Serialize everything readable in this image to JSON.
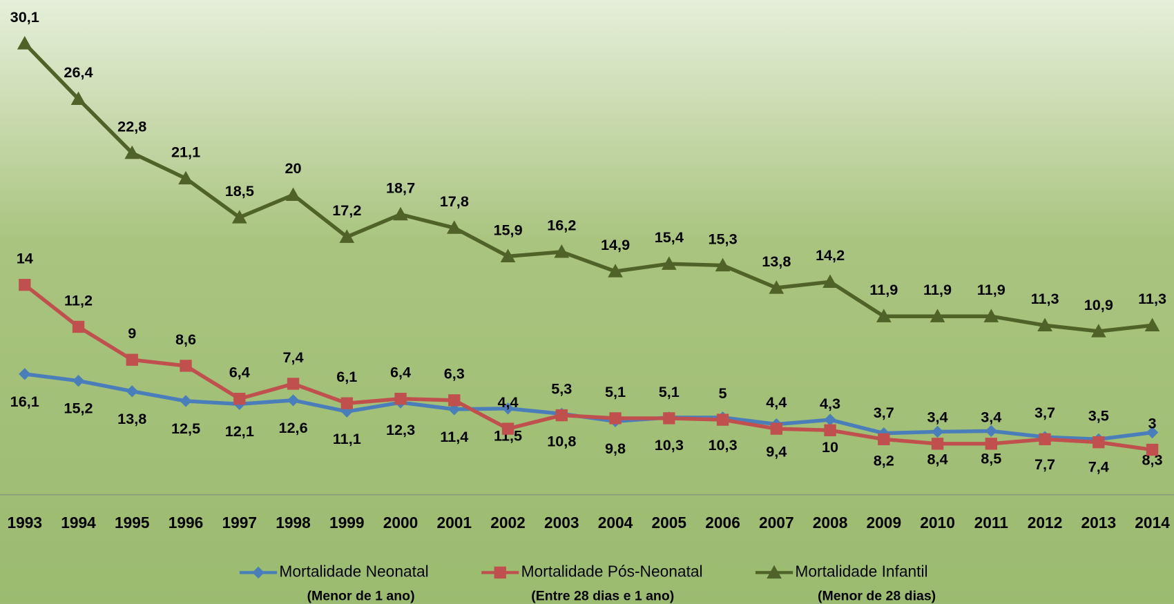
{
  "chart_data": {
    "type": "line",
    "categories": [
      "1993",
      "1994",
      "1995",
      "1996",
      "1997",
      "1998",
      "1999",
      "2000",
      "2001",
      "2002",
      "2003",
      "2004",
      "2005",
      "2006",
      "2007",
      "2008",
      "2009",
      "2010",
      "2011",
      "2012",
      "2013",
      "2014"
    ],
    "ylim": [
      0,
      33
    ],
    "y2lim": [
      0,
      66
    ],
    "grid": false,
    "series": [
      {
        "name": "Mortalidade Neonatal",
        "subtitle": "(Menor de 1 ano)",
        "color": "#4a7ebb",
        "marker": "diamond",
        "axis": "y2",
        "label_position": "below",
        "values": [
          16.1,
          15.2,
          13.8,
          12.5,
          12.1,
          12.6,
          11.1,
          12.3,
          11.4,
          11.5,
          10.8,
          9.8,
          10.3,
          10.3,
          9.4,
          10,
          8.2,
          8.4,
          8.5,
          7.7,
          7.4,
          8.3
        ],
        "value_labels": [
          "16,1",
          "15,2",
          "13,8",
          "12,5",
          "12,1",
          "12,6",
          "11,1",
          "12,3",
          "11,4",
          "11,5",
          "10,8",
          "9,8",
          "10,3",
          "10,3",
          "9,4",
          "10",
          "8,2",
          "8,4",
          "8,5",
          "7,7",
          "7,4",
          "8,3"
        ]
      },
      {
        "name": "Mortalidade Pós-Neonatal",
        "subtitle": "(Entre 28 dias e 1 ano)",
        "color": "#c0504d",
        "marker": "square",
        "label_position": "above",
        "values": [
          14,
          11.2,
          9,
          8.6,
          6.4,
          7.4,
          6.1,
          6.4,
          6.3,
          4.4,
          5.3,
          5.1,
          5.1,
          5,
          4.4,
          4.3,
          3.7,
          3.4,
          3.4,
          3.7,
          3.5,
          3
        ],
        "value_labels": [
          "14",
          "11,2",
          "9",
          "8,6",
          "6,4",
          "7,4",
          "6,1",
          "6,4",
          "6,3",
          "4,4",
          "5,3",
          "5,1",
          "5,1",
          "5",
          "4,4",
          "4,3",
          "3,7",
          "3,4",
          "3,4",
          "3,7",
          "3,5",
          "3"
        ]
      },
      {
        "name": "Mortalidade Infantil",
        "subtitle": "(Menor de 28 dias)",
        "color": "#4f6228",
        "marker": "triangle",
        "label_position": "above",
        "values": [
          30.1,
          26.4,
          22.8,
          21.1,
          18.5,
          20,
          17.2,
          18.7,
          17.8,
          15.9,
          16.2,
          14.9,
          15.4,
          15.3,
          13.8,
          14.2,
          11.9,
          11.9,
          11.9,
          11.3,
          10.9,
          11.3
        ],
        "value_labels": [
          "30,1",
          "26,4",
          "22,8",
          "21,1",
          "18,5",
          "20",
          "17,2",
          "18,7",
          "17,8",
          "15,9",
          "16,2",
          "14,9",
          "15,4",
          "15,3",
          "13,8",
          "14,2",
          "11,9",
          "11,9",
          "11,9",
          "11,3",
          "10,9",
          "11,3"
        ]
      }
    ]
  }
}
